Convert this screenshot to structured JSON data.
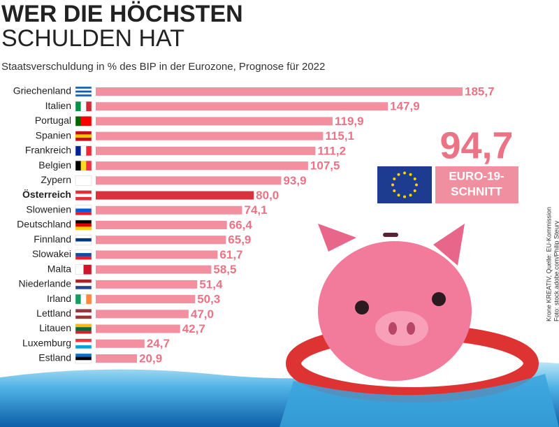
{
  "chart_data": {
    "type": "bar",
    "orientation": "horizontal",
    "title": [
      "WER DIE HÖCHSTEN",
      "SCHULDEN HAT"
    ],
    "subtitle": "Staatsverschuldung in % des BIP in der Eurozone, Prognose für 2022",
    "categories": [
      "Griechenland",
      "Italien",
      "Portugal",
      "Spanien",
      "Frankreich",
      "Belgien",
      "Zypern",
      "Österreich",
      "Slowenien",
      "Deutschland",
      "Finnland",
      "Slowakei",
      "Malta",
      "Niederlande",
      "Irland",
      "Lettland",
      "Litauen",
      "Luxemburg",
      "Estland"
    ],
    "values": [
      185.7,
      147.9,
      119.9,
      115.1,
      111.2,
      107.5,
      93.9,
      80.0,
      74.1,
      66.4,
      65.9,
      61.7,
      58.5,
      51.4,
      50.3,
      47.0,
      42.7,
      24.7,
      20.9
    ],
    "value_labels": [
      "185,7",
      "147,9",
      "119,9",
      "115,1",
      "111,2",
      "107,5",
      "93,9",
      "80,0",
      "74,1",
      "66,4",
      "65,9",
      "61,7",
      "58,5",
      "51,4",
      "50,3",
      "47,0",
      "42,7",
      "24,7",
      "20,9"
    ],
    "color": "#f3909f",
    "highlight_index": 7,
    "highlight_color": "#d8323c",
    "average": {
      "value": 94.7,
      "label": "94,7",
      "text": [
        "EURO-19-",
        "SCHNITT"
      ]
    },
    "credits": [
      "Krone KREATIV, Quelle: EU-Kommission",
      "Foto: stock.adobe.com/Philip Steury"
    ]
  }
}
